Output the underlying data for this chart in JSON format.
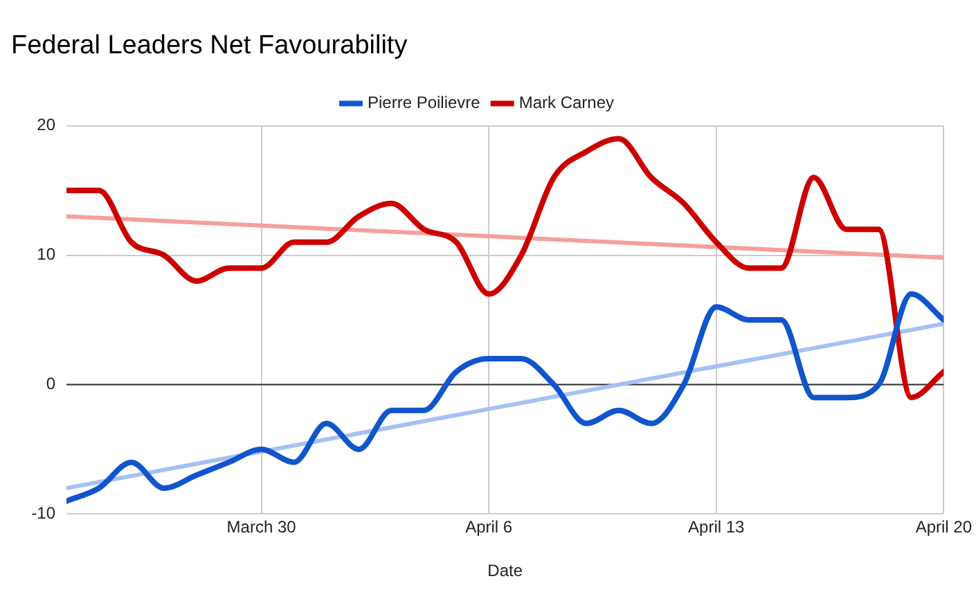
{
  "chart_data": {
    "type": "line",
    "title": "Federal Leaders Net Favourability",
    "xlabel": "Date",
    "x": [
      "--03-24",
      "--03-25",
      "--03-26",
      "--03-27",
      "--03-28",
      "--03-29",
      "--03-30",
      "--03-31",
      "--04-01",
      "--04-02",
      "--04-03",
      "--04-04",
      "--04-05",
      "--04-06",
      "--04-07",
      "--04-08",
      "--04-09",
      "--04-10",
      "--04-11",
      "--04-12",
      "--04-13",
      "--04-14",
      "--04-15",
      "--04-16",
      "--04-17",
      "--04-18",
      "--04-19",
      "--04-20"
    ],
    "series": [
      {
        "name": "Pierre Poilievre",
        "color": "#1155cc",
        "values": [
          -9,
          -8,
          -6,
          -8,
          -7,
          -6,
          -5,
          -6,
          -3,
          -5,
          -2,
          -2,
          1,
          2,
          2,
          0,
          -3,
          -2,
          -3,
          0,
          6,
          5,
          5,
          -1,
          -1,
          0,
          7,
          5
        ]
      },
      {
        "name": "Mark Carney",
        "color": "#cc0000",
        "values": [
          15,
          15,
          11,
          10,
          8,
          9,
          9,
          11,
          11,
          13,
          14,
          12,
          11,
          7,
          10,
          16,
          18,
          19,
          16,
          14,
          11,
          9,
          9,
          16,
          12,
          12,
          -1,
          1
        ]
      },
      {
        "type": "line",
        "color": "#a4c2f4",
        "x": [
          "--03-24",
          "--04-20"
        ],
        "values": [
          -8,
          4.7
        ]
      },
      {
        "type": "line",
        "color": "#f4a09a",
        "x": [
          "--03-24",
          "--04-20"
        ],
        "values": [
          13,
          9.8
        ]
      }
    ],
    "xlim": [
      "--03-24",
      "--04-20"
    ],
    "xticks": [
      {
        "value": "--03-30",
        "label": "March 30"
      },
      {
        "value": "--04-06",
        "label": "April 6"
      },
      {
        "value": "--04-13",
        "label": "April 13"
      },
      {
        "value": "--04-20",
        "label": "April 20"
      }
    ],
    "ylim": [
      -10,
      20
    ],
    "yticks": [
      -10,
      0,
      10,
      20
    ],
    "ref_lines": [
      {
        "axis": "y",
        "value": 0,
        "color": "#333333"
      }
    ],
    "grid": true,
    "legend": "top",
    "marker": "none",
    "line_style": "solid"
  }
}
